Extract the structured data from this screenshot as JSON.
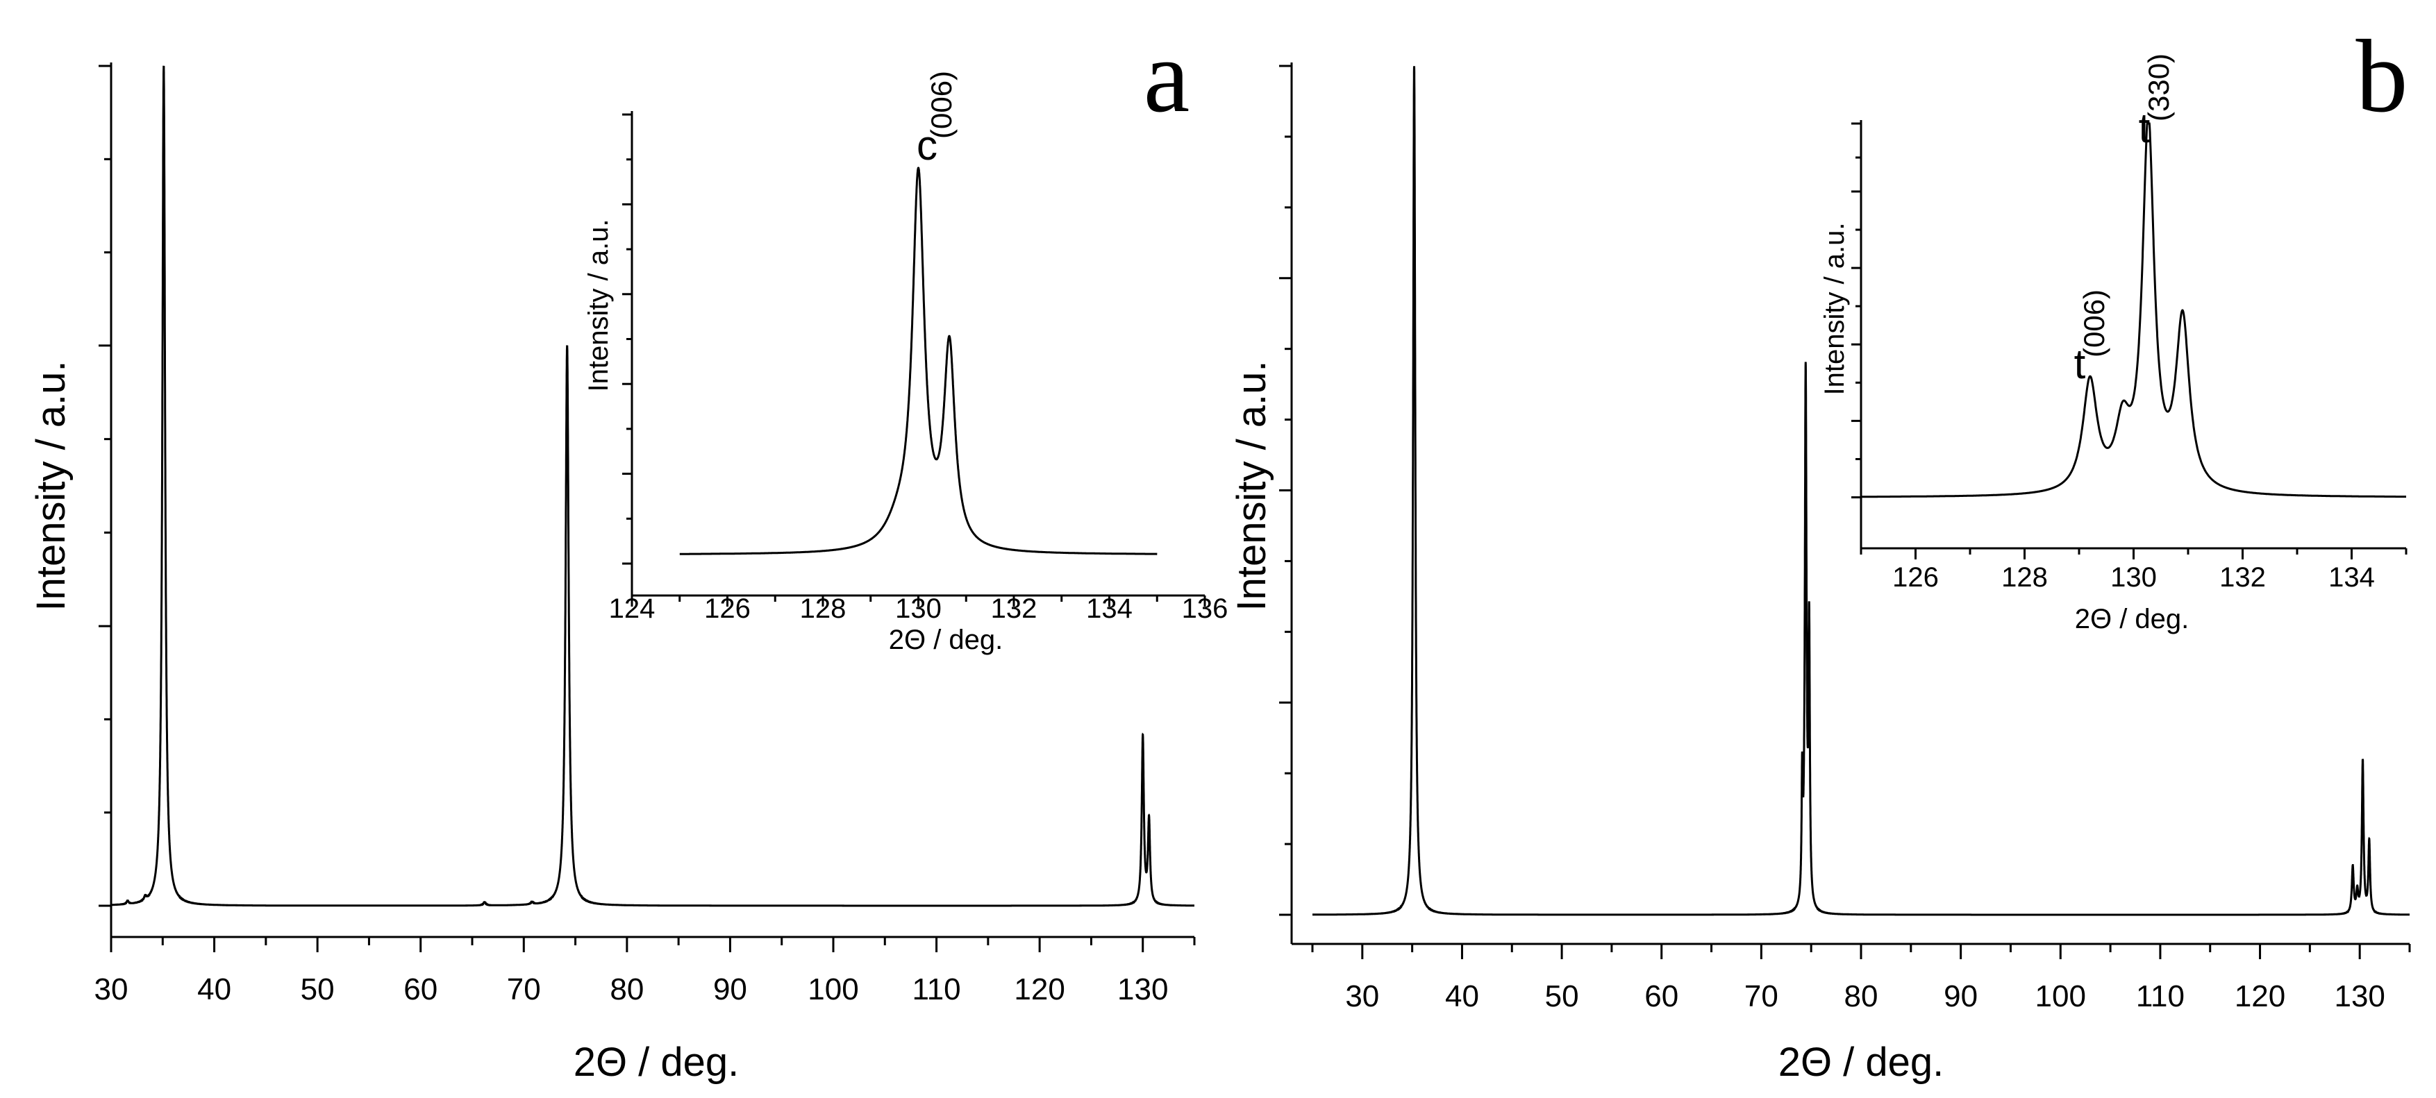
{
  "chart_data": [
    {
      "panel": "a",
      "type": "line",
      "xlabel": "2Θ / deg.",
      "ylabel": "Intensity / a.u.",
      "xlim": [
        30,
        135
      ],
      "ylim": [
        0,
        1
      ],
      "xticks": [
        30,
        40,
        50,
        60,
        70,
        80,
        90,
        100,
        110,
        120,
        130
      ],
      "xtick_labels": [
        "30",
        "40",
        "50",
        "60",
        "70",
        "80",
        "90",
        "100",
        "110",
        "120",
        "130"
      ],
      "ytick_values": [
        0,
        0.333,
        0.667,
        1.0
      ],
      "baseline": 0.0,
      "peaks": [
        {
          "x": 31.6,
          "height": 0.004,
          "width": 0.12
        },
        {
          "x": 33.3,
          "height": 0.005,
          "width": 0.12
        },
        {
          "x": 35.1,
          "height": 1.0,
          "width": 0.16
        },
        {
          "x": 66.2,
          "height": 0.004,
          "width": 0.15
        },
        {
          "x": 70.8,
          "height": 0.003,
          "width": 0.15
        },
        {
          "x": 74.2,
          "height": 0.667,
          "width": 0.18
        },
        {
          "x": 130.0,
          "height": 0.2,
          "width": 0.12
        },
        {
          "x": 130.6,
          "height": 0.1,
          "width": 0.12
        }
      ],
      "inset": {
        "xlabel": "2Θ / deg.",
        "ylabel": "Intensity / a.u.",
        "xlim": [
          124,
          136
        ],
        "ylim": [
          0,
          1
        ],
        "xticks": [
          124,
          126,
          128,
          130,
          132,
          134,
          136
        ],
        "xtick_labels": [
          "124",
          "126",
          "128",
          "130",
          "132",
          "134",
          "136"
        ],
        "x_range": [
          125,
          135
        ],
        "baseline": 0.02,
        "peaks": [
          {
            "x": 130.0,
            "height": 0.82,
            "width": 0.15
          },
          {
            "x": 130.65,
            "height": 0.44,
            "width": 0.14
          },
          {
            "x": 129.6,
            "height": 0.05,
            "width": 0.35
          }
        ],
        "annotations": [
          {
            "text": "c",
            "subscript": "(006)",
            "x": 130.0
          }
        ]
      }
    },
    {
      "panel": "b",
      "type": "line",
      "xlabel": "2Θ / deg.",
      "ylabel": "Intensity / a.u.",
      "xlim": [
        25,
        135
      ],
      "ylim": [
        0,
        1
      ],
      "xticks": [
        30,
        40,
        50,
        60,
        70,
        80,
        90,
        100,
        110,
        120,
        130
      ],
      "xtick_labels": [
        "30",
        "40",
        "50",
        "60",
        "70",
        "80",
        "90",
        "100",
        "110",
        "120",
        "130"
      ],
      "ytick_values": [
        0,
        0.25,
        0.5,
        0.75,
        1.0
      ],
      "baseline": 0.0,
      "peaks": [
        {
          "x": 35.2,
          "height": 1.0,
          "width": 0.13
        },
        {
          "x": 74.1,
          "height": 0.14,
          "width": 0.07
        },
        {
          "x": 74.45,
          "height": 0.63,
          "width": 0.1
        },
        {
          "x": 74.8,
          "height": 0.32,
          "width": 0.08
        },
        {
          "x": 129.3,
          "height": 0.055,
          "width": 0.11
        },
        {
          "x": 129.75,
          "height": 0.025,
          "width": 0.11
        },
        {
          "x": 130.3,
          "height": 0.18,
          "width": 0.1
        },
        {
          "x": 130.95,
          "height": 0.085,
          "width": 0.1
        }
      ],
      "inset": {
        "xlabel": "2Θ / deg.",
        "ylabel": "Intensity / a.u.",
        "xlim": [
          125,
          135
        ],
        "ylim": [
          0,
          1
        ],
        "xticks": [
          126,
          128,
          130,
          132,
          134
        ],
        "xtick_labels": [
          "126",
          "128",
          "130",
          "132",
          "134"
        ],
        "x_range": [
          125,
          135
        ],
        "baseline": 0.12,
        "peaks": [
          {
            "x": 129.2,
            "height": 0.26,
            "width": 0.16
          },
          {
            "x": 129.8,
            "height": 0.14,
            "width": 0.16
          },
          {
            "x": 130.27,
            "height": 0.86,
            "width": 0.13
          },
          {
            "x": 130.9,
            "height": 0.4,
            "width": 0.15
          }
        ],
        "annotations": [
          {
            "text": "t",
            "subscript": "(006)",
            "x": 129.2
          },
          {
            "text": "t",
            "subscript": "(330)",
            "x": 130.27
          }
        ]
      }
    }
  ]
}
